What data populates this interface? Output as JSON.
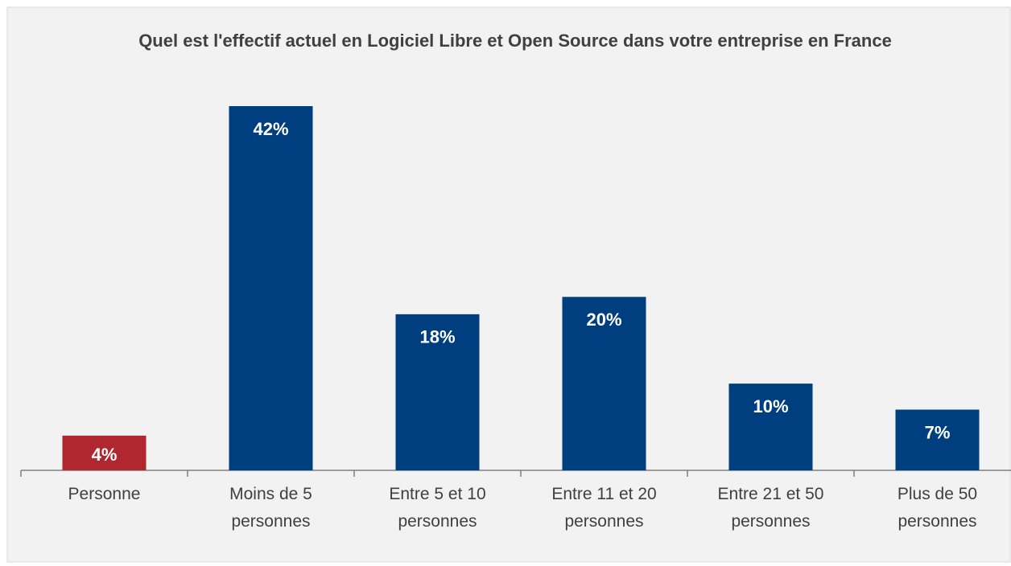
{
  "chart_data": {
    "type": "bar",
    "title": "Quel est l'effectif actuel en Logiciel Libre et Open Source dans votre entreprise en France",
    "categories": [
      "Personne",
      "Moins de 5 personnes",
      "Entre 5 et 10 personnes",
      "Entre 11 et 20 personnes",
      "Entre 21 et 50 personnes",
      "Plus de 50 personnes"
    ],
    "values": [
      4,
      42,
      18,
      20,
      10,
      7
    ],
    "value_labels": [
      "4%",
      "42%",
      "18%",
      "20%",
      "10%",
      "7%"
    ],
    "colors": [
      "#b0272f",
      "#003f7f",
      "#003f7f",
      "#003f7f",
      "#003f7f",
      "#003f7f"
    ]
  }
}
